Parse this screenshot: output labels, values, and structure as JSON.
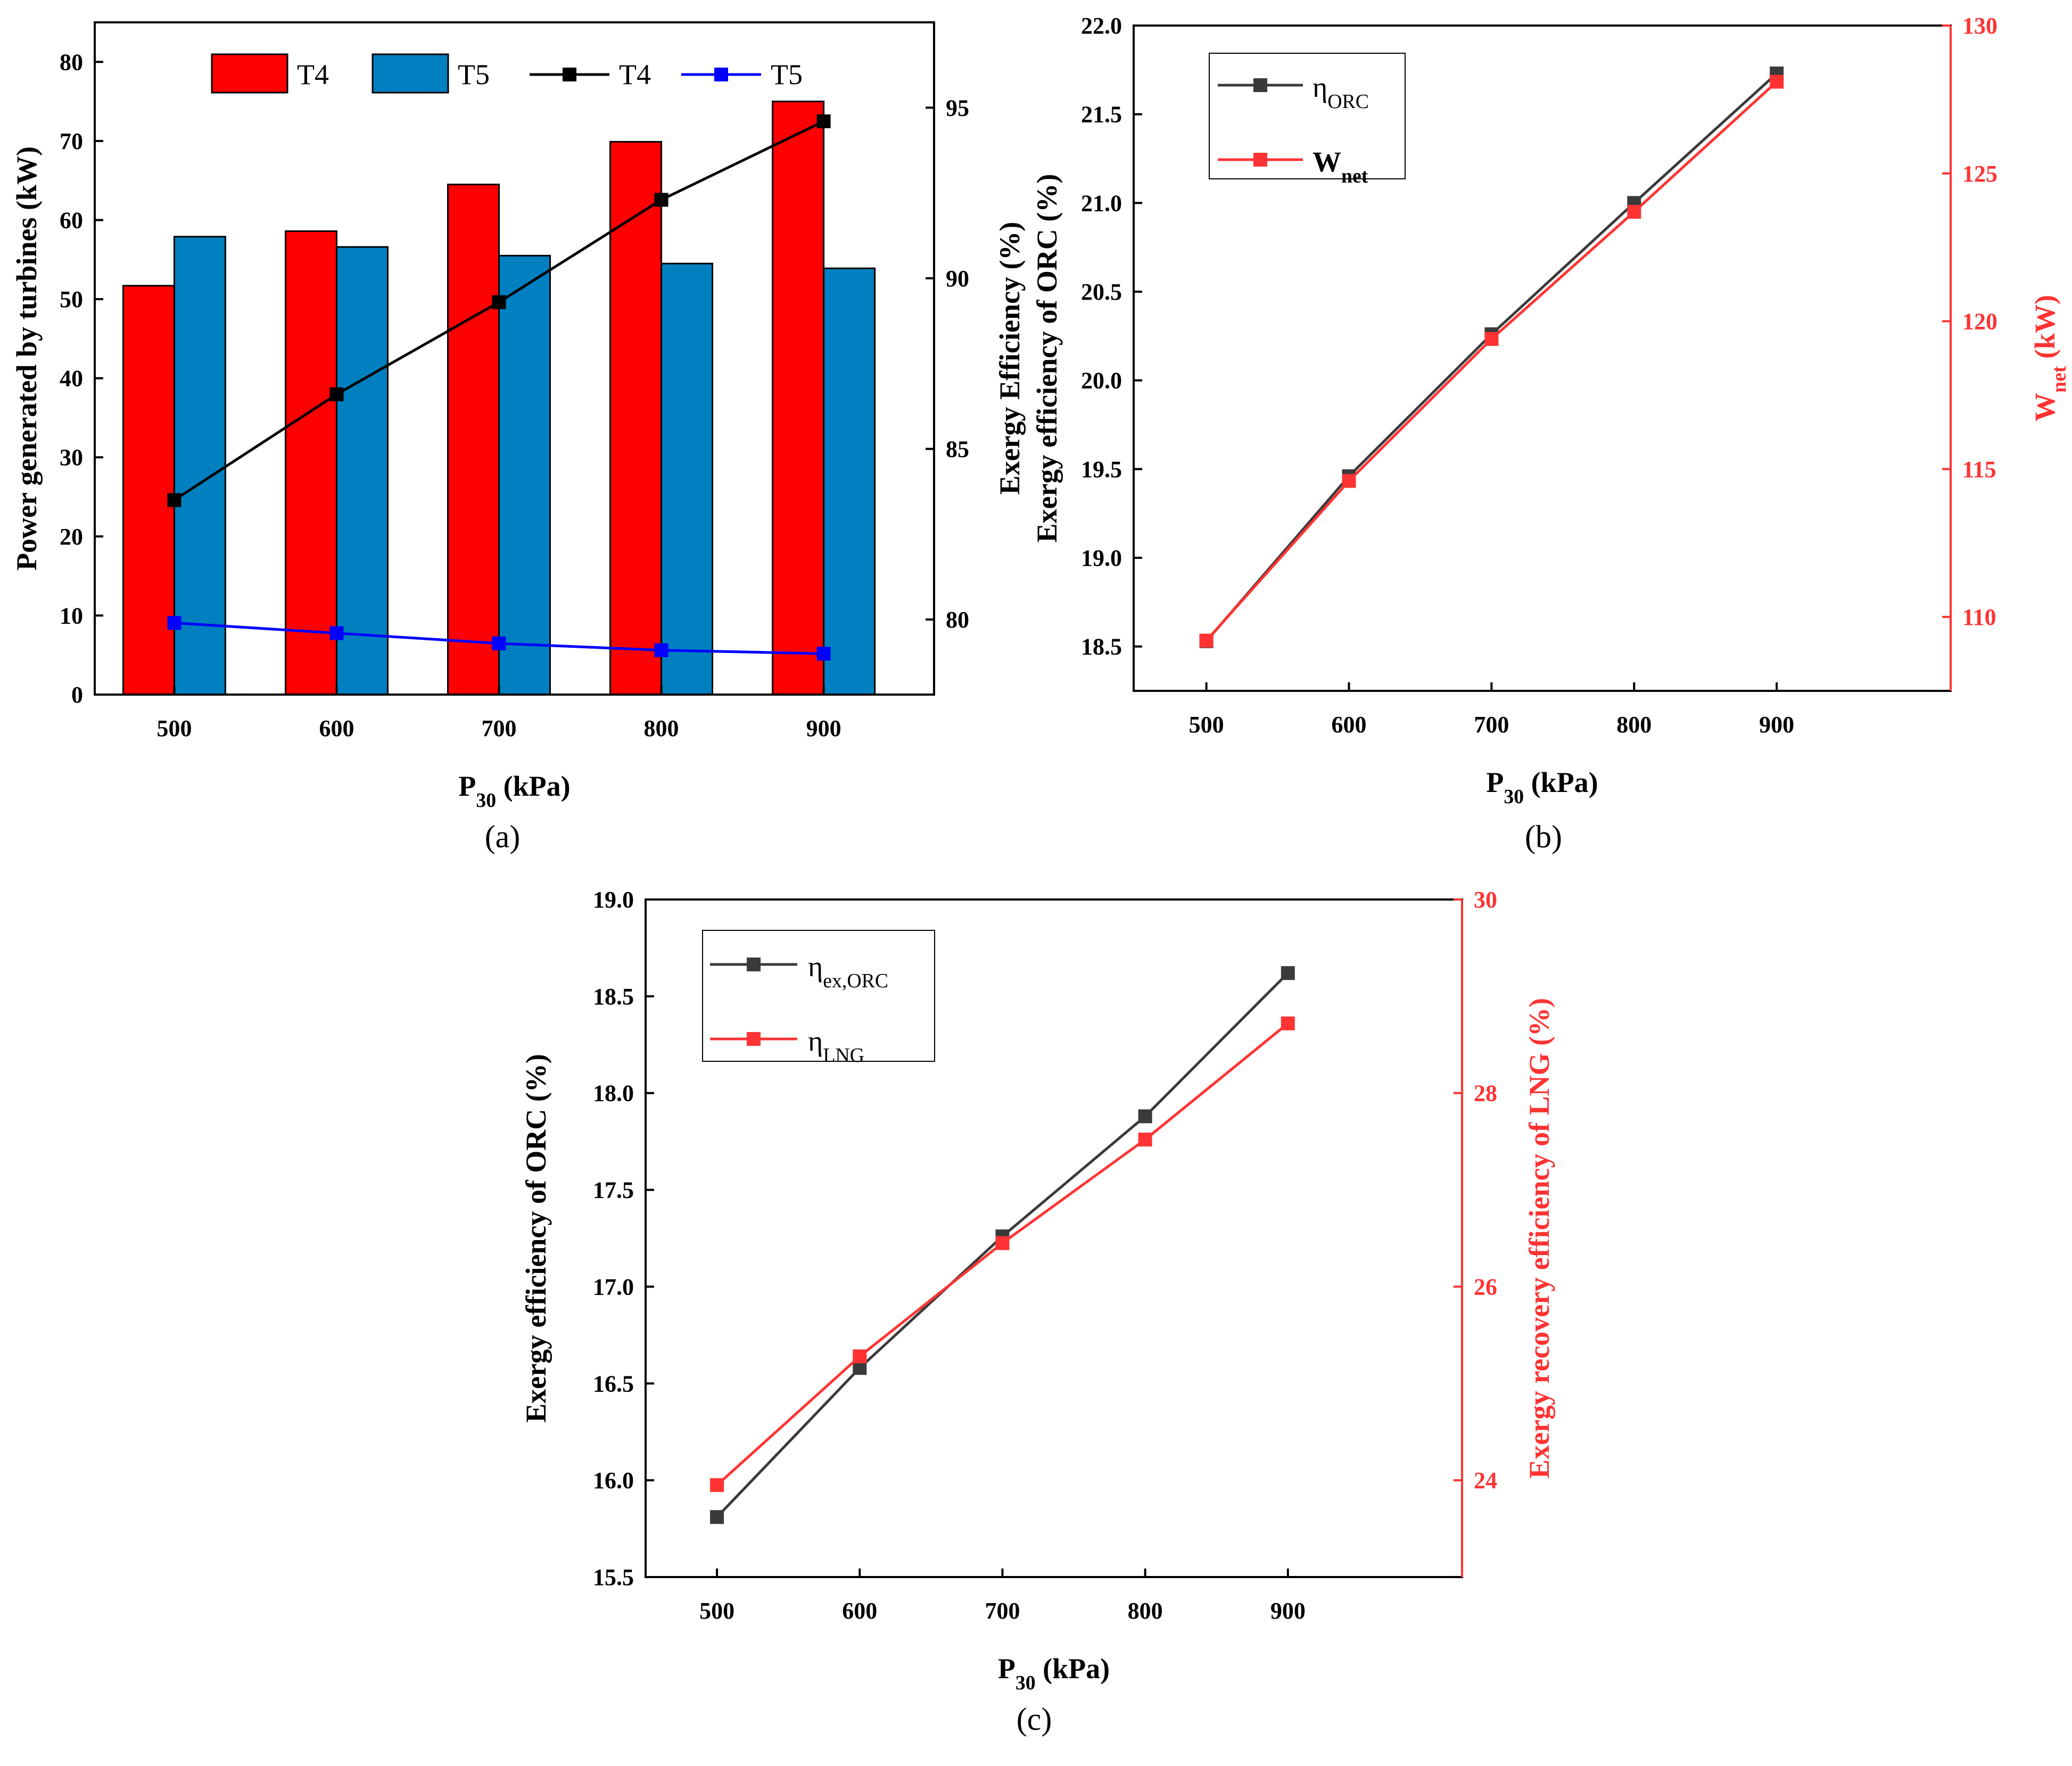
{
  "chart_data": [
    {
      "panel": "(a)",
      "type": "bar+line",
      "x": [
        500,
        600,
        700,
        800,
        900
      ],
      "xlabel": "P30 (kPa)",
      "xlabel_main": "P",
      "xlabel_sub": "30",
      "xlabel_rest": " (kPa)",
      "ylabel": "Power generated by turbines (kW)",
      "ylim": [
        0,
        85
      ],
      "yticks": [
        0,
        10,
        20,
        30,
        40,
        50,
        60,
        70,
        80
      ],
      "y2lim": [
        77.8,
        97.5
      ],
      "y2ticks": [
        80,
        85,
        90,
        95
      ],
      "bar_series": [
        {
          "name": "T4",
          "color": "#ff0000",
          "values": [
            51.7,
            58.6,
            64.5,
            69.9,
            75.0
          ]
        },
        {
          "name": "T5",
          "color": "#0080c0",
          "values": [
            57.9,
            56.6,
            55.5,
            54.5,
            53.9
          ]
        }
      ],
      "line_series": [
        {
          "name": "T4",
          "color": "#000000",
          "axis": "right",
          "values": [
            83.5,
            86.6,
            89.3,
            92.3,
            94.6
          ]
        },
        {
          "name": "T5",
          "color": "#0000ff",
          "axis": "right",
          "values": [
            79.9,
            79.6,
            79.3,
            79.1,
            79.0
          ]
        }
      ],
      "legend": "top"
    },
    {
      "panel": "(b)",
      "type": "line",
      "x": [
        500,
        600,
        700,
        800,
        900
      ],
      "xlabel": "P30 (kPa)",
      "xlabel_main": "P",
      "xlabel_sub": "30",
      "xlabel_rest": " (kPa)",
      "ylabel_line1": "Exergy Efficiency (%)",
      "ylabel_line2": "Exergy efficiency of ORC (%)",
      "ylim": [
        18.25,
        22.0
      ],
      "yticks": [
        "18.5",
        "19.0",
        "19.5",
        "20.0",
        "20.5",
        "21.0",
        "21.5",
        "22.0"
      ],
      "y2label": "Wnet (kW)",
      "y2label_main": "W",
      "y2label_sub": "net",
      "y2label_rest": " (kW)",
      "y2lim": [
        107.5,
        130
      ],
      "y2ticks": [
        110,
        115,
        120,
        125,
        130
      ],
      "series": [
        {
          "name": "ηORC",
          "name_main": "η",
          "name_sub": "ORC",
          "color": "#3a3a3a",
          "axis": "left",
          "values": [
            18.53,
            19.46,
            20.26,
            21.0,
            21.73
          ]
        },
        {
          "name": "Wnet",
          "name_main": "W",
          "name_sub": "net",
          "color": "#ff3333",
          "axis": "right",
          "values": [
            109.2,
            114.6,
            119.4,
            123.7,
            128.1
          ]
        }
      ],
      "legend": "top-left"
    },
    {
      "panel": "(c)",
      "type": "line",
      "x": [
        500,
        600,
        700,
        800,
        900
      ],
      "xlabel": "P30 (kPa)",
      "xlabel_main": "P",
      "xlabel_sub": "30",
      "xlabel_rest": " (kPa)",
      "ylabel": "Exergy efficiency of ORC (%)",
      "ylim": [
        15.5,
        19.0
      ],
      "yticks": [
        "15.5",
        "16.0",
        "16.5",
        "17.0",
        "17.5",
        "18.0",
        "18.5",
        "19.0"
      ],
      "y2label": "Exergy recovery efficiency of LNG (%)",
      "y2lim": [
        23.0,
        30.0
      ],
      "y2ticks": [
        24,
        26,
        28,
        30
      ],
      "series": [
        {
          "name": "ηex,ORC",
          "name_main": "η",
          "name_sub": "ex,ORC",
          "color": "#3a3a3a",
          "axis": "left",
          "values": [
            15.81,
            16.58,
            17.26,
            17.88,
            18.62
          ]
        },
        {
          "name": "ηLNG",
          "name_main": "η",
          "name_sub": "LNG",
          "color": "#ff3333",
          "axis": "right",
          "values": [
            23.95,
            25.28,
            26.45,
            27.52,
            28.72
          ]
        }
      ],
      "legend": "top-left"
    }
  ]
}
